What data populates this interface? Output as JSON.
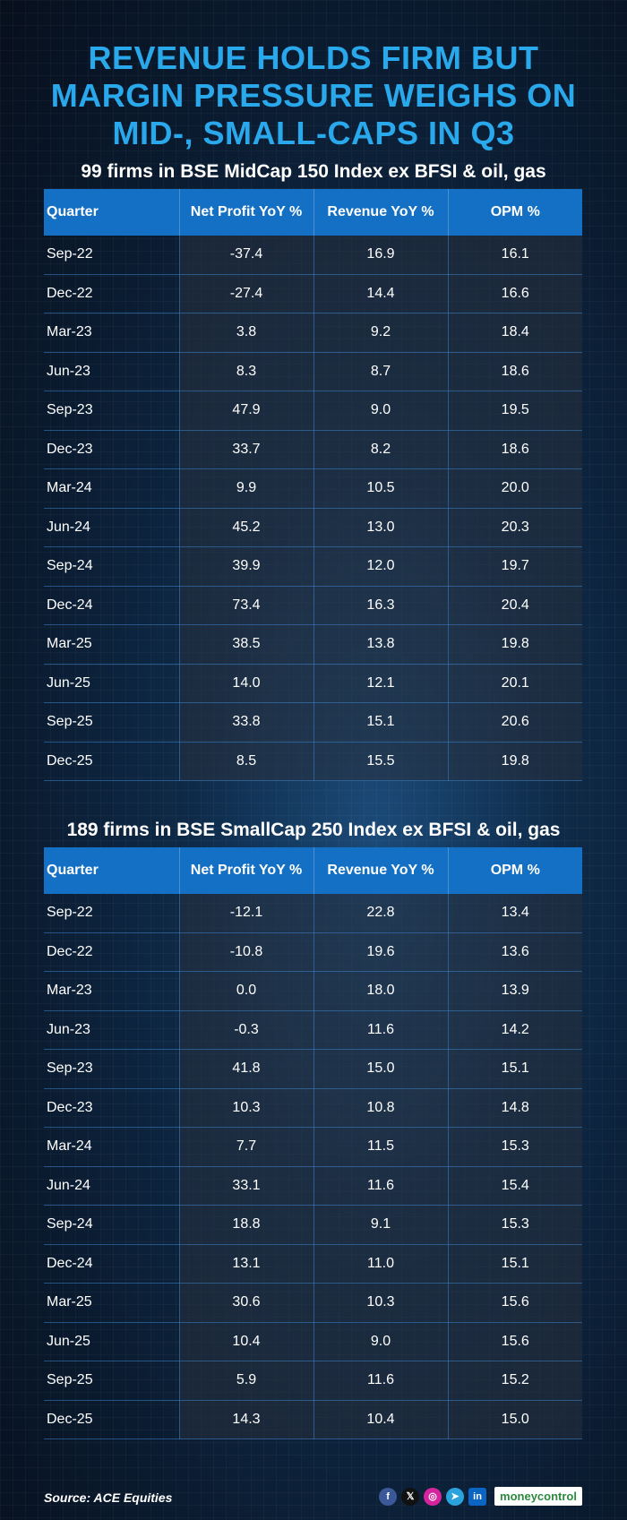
{
  "title_lines": [
    "REVENUE HOLDS FIRM BUT",
    "MARGIN PRESSURE WEIGHS ON",
    "MID-, SMALL-CAPS IN Q3"
  ],
  "colors": {
    "title": "#29a8ec",
    "header_bg": "#1470c4",
    "background": "#0a1a2e"
  },
  "footer": {
    "source": "Source: ACE Equities",
    "brand": "moneycontrol"
  },
  "socials": [
    "facebook-icon",
    "x-icon",
    "instagram-icon",
    "telegram-icon",
    "linkedin-icon"
  ],
  "chart_data": [
    {
      "type": "table",
      "title": "99 firms in BSE MidCap 150 Index ex BFSI & oil, gas",
      "columns": [
        "Quarter",
        "Net Profit YoY %",
        "Revenue YoY %",
        "OPM %"
      ],
      "rows": [
        [
          "Sep-22",
          "-37.4",
          "16.9",
          "16.1"
        ],
        [
          "Dec-22",
          "-27.4",
          "14.4",
          "16.6"
        ],
        [
          "Mar-23",
          "3.8",
          "9.2",
          "18.4"
        ],
        [
          "Jun-23",
          "8.3",
          "8.7",
          "18.6"
        ],
        [
          "Sep-23",
          "47.9",
          "9.0",
          "19.5"
        ],
        [
          "Dec-23",
          "33.7",
          "8.2",
          "18.6"
        ],
        [
          "Mar-24",
          "9.9",
          "10.5",
          "20.0"
        ],
        [
          "Jun-24",
          "45.2",
          "13.0",
          "20.3"
        ],
        [
          "Sep-24",
          "39.9",
          "12.0",
          "19.7"
        ],
        [
          "Dec-24",
          "73.4",
          "16.3",
          "20.4"
        ],
        [
          "Mar-25",
          "38.5",
          "13.8",
          "19.8"
        ],
        [
          "Jun-25",
          "14.0",
          "12.1",
          "20.1"
        ],
        [
          "Sep-25",
          "33.8",
          "15.1",
          "20.6"
        ],
        [
          "Dec-25",
          "8.5",
          "15.5",
          "19.8"
        ]
      ]
    },
    {
      "type": "table",
      "title": "189 firms in BSE SmallCap 250 Index ex BFSI & oil, gas",
      "columns": [
        "Quarter",
        "Net Profit YoY %",
        "Revenue YoY %",
        "OPM %"
      ],
      "rows": [
        [
          "Sep-22",
          "-12.1",
          "22.8",
          "13.4"
        ],
        [
          "Dec-22",
          "-10.8",
          "19.6",
          "13.6"
        ],
        [
          "Mar-23",
          "0.0",
          "18.0",
          "13.9"
        ],
        [
          "Jun-23",
          "-0.3",
          "11.6",
          "14.2"
        ],
        [
          "Sep-23",
          "41.8",
          "15.0",
          "15.1"
        ],
        [
          "Dec-23",
          "10.3",
          "10.8",
          "14.8"
        ],
        [
          "Mar-24",
          "7.7",
          "11.5",
          "15.3"
        ],
        [
          "Jun-24",
          "33.1",
          "11.6",
          "15.4"
        ],
        [
          "Sep-24",
          "18.8",
          "9.1",
          "15.3"
        ],
        [
          "Dec-24",
          "13.1",
          "11.0",
          "15.1"
        ],
        [
          "Mar-25",
          "30.6",
          "10.3",
          "15.6"
        ],
        [
          "Jun-25",
          "10.4",
          "9.0",
          "15.6"
        ],
        [
          "Sep-25",
          "5.9",
          "11.6",
          "15.2"
        ],
        [
          "Dec-25",
          "14.3",
          "10.4",
          "15.0"
        ]
      ]
    }
  ]
}
